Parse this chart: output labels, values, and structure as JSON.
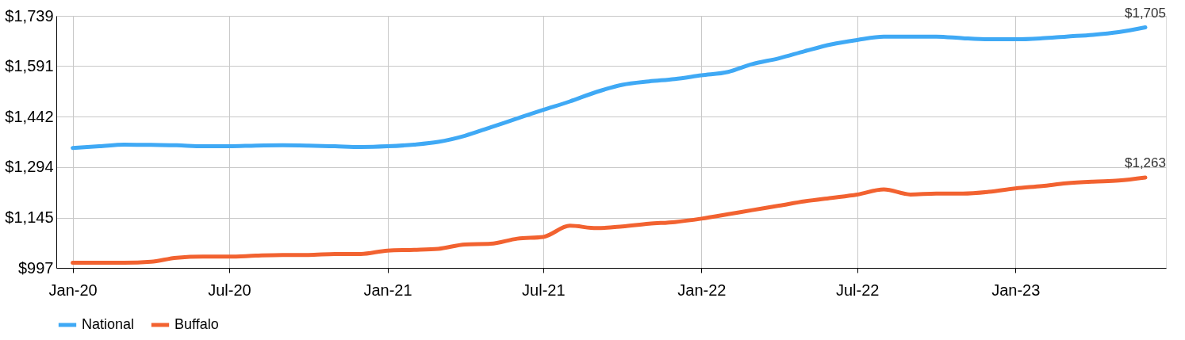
{
  "chart_data": {
    "type": "line",
    "x": [
      "2020-01",
      "2020-02",
      "2020-03",
      "2020-04",
      "2020-05",
      "2020-06",
      "2020-07",
      "2020-08",
      "2020-09",
      "2020-10",
      "2020-11",
      "2020-12",
      "2021-01",
      "2021-02",
      "2021-03",
      "2021-04",
      "2021-05",
      "2021-06",
      "2021-07",
      "2021-08",
      "2021-09",
      "2021-10",
      "2021-11",
      "2021-12",
      "2022-01",
      "2022-02",
      "2022-03",
      "2022-04",
      "2022-05",
      "2022-06",
      "2022-07",
      "2022-08",
      "2022-09",
      "2022-10",
      "2022-11",
      "2022-12",
      "2023-01",
      "2023-02",
      "2023-03",
      "2023-04",
      "2023-05",
      "2023-06"
    ],
    "series": [
      {
        "name": "National",
        "color": "#3fa9f5",
        "values": [
          1350,
          1355,
          1360,
          1359,
          1358,
          1355,
          1355,
          1357,
          1358,
          1357,
          1355,
          1353,
          1355,
          1360,
          1368,
          1386,
          1411,
          1437,
          1462,
          1487,
          1515,
          1536,
          1546,
          1553,
          1564,
          1574,
          1597,
          1614,
          1635,
          1655,
          1668,
          1678,
          1678,
          1678,
          1673,
          1670,
          1670,
          1673,
          1678,
          1683,
          1691,
          1705
        ]
      },
      {
        "name": "Buffalo",
        "color": "#f26230",
        "values": [
          1012,
          1012,
          1012,
          1015,
          1027,
          1030,
          1030,
          1033,
          1035,
          1035,
          1038,
          1038,
          1048,
          1050,
          1053,
          1066,
          1068,
          1083,
          1088,
          1121,
          1114,
          1119,
          1127,
          1132,
          1142,
          1155,
          1167,
          1180,
          1193,
          1203,
          1213,
          1228,
          1213,
          1216,
          1216,
          1221,
          1231,
          1238,
          1246,
          1251,
          1254,
          1263
        ]
      }
    ],
    "xlim": [
      "2019-12-13",
      "2023-06-25"
    ],
    "xticks": [
      {
        "value": "2020-01",
        "label": "Jan-20"
      },
      {
        "value": "2020-07",
        "label": "Jul-20"
      },
      {
        "value": "2021-01",
        "label": "Jan-21"
      },
      {
        "value": "2021-07",
        "label": "Jul-21"
      },
      {
        "value": "2022-01",
        "label": "Jan-22"
      },
      {
        "value": "2022-07",
        "label": "Jul-22"
      },
      {
        "value": "2023-01",
        "label": "Jan-23"
      }
    ],
    "ylim": [
      997,
      1739
    ],
    "yticks": [
      {
        "value": 997,
        "label": "$997"
      },
      {
        "value": 1145,
        "label": "$1,145"
      },
      {
        "value": 1294,
        "label": "$1,294"
      },
      {
        "value": 1442,
        "label": "$1,442"
      },
      {
        "value": 1591,
        "label": "$1,591"
      },
      {
        "value": 1739,
        "label": "$1,739"
      }
    ],
    "annotations": [
      {
        "text": "$1,705",
        "x": "2023-06",
        "y": 1705
      },
      {
        "text": "$1,263",
        "x": "2023-06",
        "y": 1263
      }
    ],
    "grid": true,
    "legend": "bottom",
    "marker": "none",
    "line_style": "solid"
  }
}
